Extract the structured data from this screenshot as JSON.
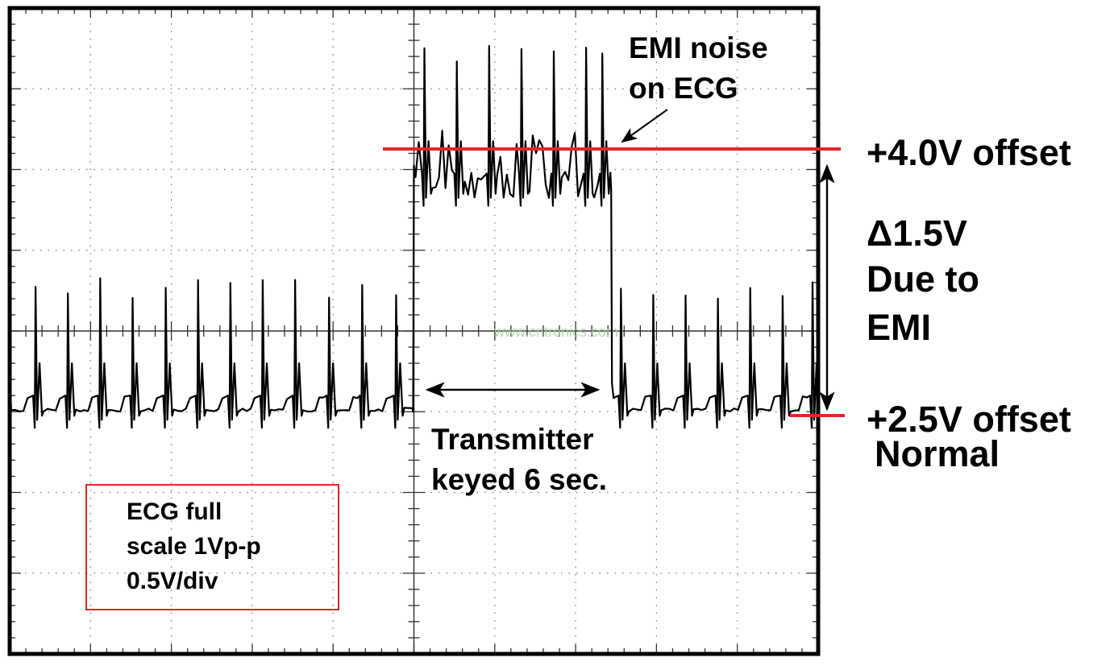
{
  "chart_data": {
    "type": "line",
    "title": "",
    "xlabel": "",
    "ylabel": "",
    "graticule": {
      "x_divisions": 10,
      "y_divisions": 8,
      "minor_per_division": 5,
      "grid": "dotted"
    },
    "trace_units": "graticule divisions (x from left edge, y from center line)",
    "segments": [
      {
        "start": 0.0,
        "end": 5.0,
        "baseline": -1.0,
        "peak": 0.7,
        "spikes": [
          0.32,
          0.72,
          1.12,
          1.52,
          1.93,
          2.33,
          2.73,
          3.13,
          3.53,
          3.95,
          4.36,
          4.78
        ]
      },
      {
        "start": 5.0,
        "end": 7.45,
        "baseline": 1.75,
        "peak": 3.6,
        "spikes": [
          5.13,
          5.53,
          5.93,
          6.33,
          6.73,
          7.13,
          7.33
        ]
      },
      {
        "start": 7.45,
        "end": 10.0,
        "baseline": -1.0,
        "peak": 0.65,
        "spikes": [
          7.56,
          7.96,
          8.36,
          8.76,
          9.16,
          9.56,
          9.93
        ]
      }
    ],
    "trace_color": "#000000",
    "marker_color": "#e0262b",
    "watermark_color": "#9fd39b",
    "annotations": {
      "emi_line1": "EMI noise",
      "emi_line2": "on ECG",
      "offset_high": "+4.0V offset",
      "delta": "Δ1.5V",
      "due1": "Due to",
      "due2": "EMI",
      "offset_low": "+2.5V offset",
      "normal": "Normal",
      "tx1": "Transmitter",
      "tx2": "keyed 6 sec.",
      "box1": "ECG full",
      "box2": "scale 1Vp-p",
      "box3": "0.5V/div",
      "watermark": "www.cntronics.com"
    }
  }
}
